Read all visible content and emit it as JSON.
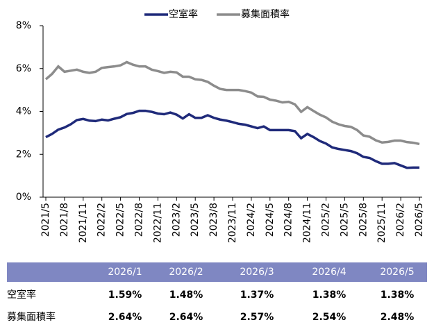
{
  "chart_data": {
    "type": "line",
    "categories": [
      "2021/5",
      null,
      null,
      "2021/8",
      null,
      null,
      "2021/11",
      null,
      null,
      "2022/2",
      null,
      null,
      "2022/5",
      null,
      null,
      "2022/8",
      null,
      null,
      "2022/11",
      null,
      null,
      "2023/2",
      null,
      null,
      "2023/5",
      null,
      null,
      "2023/8",
      null,
      null,
      "2023/11",
      null,
      null,
      "2024/2",
      null,
      null,
      "2024/5",
      null,
      null,
      "2024/8",
      null,
      null,
      "2024/11",
      null,
      null,
      "2025/2",
      null,
      null,
      "2025/5",
      null,
      null,
      "2025/8",
      null,
      null,
      "2025/11",
      null,
      null,
      "2026/2",
      null,
      null,
      "2026/5"
    ],
    "series": [
      {
        "name": "空室率",
        "color": "#1f2a7a",
        "values": [
          2.8,
          2.95,
          3.15,
          3.25,
          3.4,
          3.6,
          3.65,
          3.57,
          3.55,
          3.62,
          3.58,
          3.66,
          3.73,
          3.88,
          3.93,
          4.03,
          4.03,
          3.98,
          3.9,
          3.87,
          3.95,
          3.85,
          3.67,
          3.87,
          3.7,
          3.7,
          3.82,
          3.7,
          3.62,
          3.57,
          3.5,
          3.42,
          3.38,
          3.3,
          3.22,
          3.3,
          3.13,
          3.13,
          3.13,
          3.13,
          3.08,
          2.75,
          2.95,
          2.8,
          2.62,
          2.5,
          2.32,
          2.25,
          2.2,
          2.15,
          2.05,
          1.88,
          1.83,
          1.68,
          1.56,
          1.56,
          1.59,
          1.48,
          1.37,
          1.38,
          1.38
        ]
      },
      {
        "name": "募集面積率",
        "color": "#8c8c8c",
        "values": [
          5.5,
          5.75,
          6.1,
          5.85,
          5.9,
          5.95,
          5.85,
          5.8,
          5.85,
          6.03,
          6.07,
          6.1,
          6.15,
          6.3,
          6.18,
          6.1,
          6.1,
          5.95,
          5.88,
          5.8,
          5.85,
          5.82,
          5.62,
          5.62,
          5.5,
          5.47,
          5.38,
          5.2,
          5.05,
          5.0,
          5.0,
          5.0,
          4.95,
          4.88,
          4.7,
          4.68,
          4.55,
          4.5,
          4.42,
          4.45,
          4.33,
          3.98,
          4.2,
          4.02,
          3.85,
          3.72,
          3.52,
          3.4,
          3.32,
          3.28,
          3.13,
          2.88,
          2.82,
          2.65,
          2.55,
          2.58,
          2.64,
          2.64,
          2.57,
          2.54,
          2.48
        ]
      }
    ],
    "ylim": [
      0,
      8
    ],
    "yticks": [
      {
        "value": 0,
        "label": "0%"
      },
      {
        "value": 2,
        "label": "2%"
      },
      {
        "value": 4,
        "label": "4%"
      },
      {
        "value": 6,
        "label": "6%"
      },
      {
        "value": 8,
        "label": "8%"
      }
    ],
    "legend": "top"
  },
  "table": {
    "header": [
      "2026/1",
      "2026/2",
      "2026/3",
      "2026/4",
      "2026/5"
    ],
    "rows": [
      [
        "空室率",
        "1.59%",
        "1.48%",
        "1.37%",
        "1.38%",
        "1.38%"
      ],
      [
        "募集面積率",
        "2.64%",
        "2.64%",
        "2.57%",
        "2.54%",
        "2.48%"
      ]
    ]
  }
}
